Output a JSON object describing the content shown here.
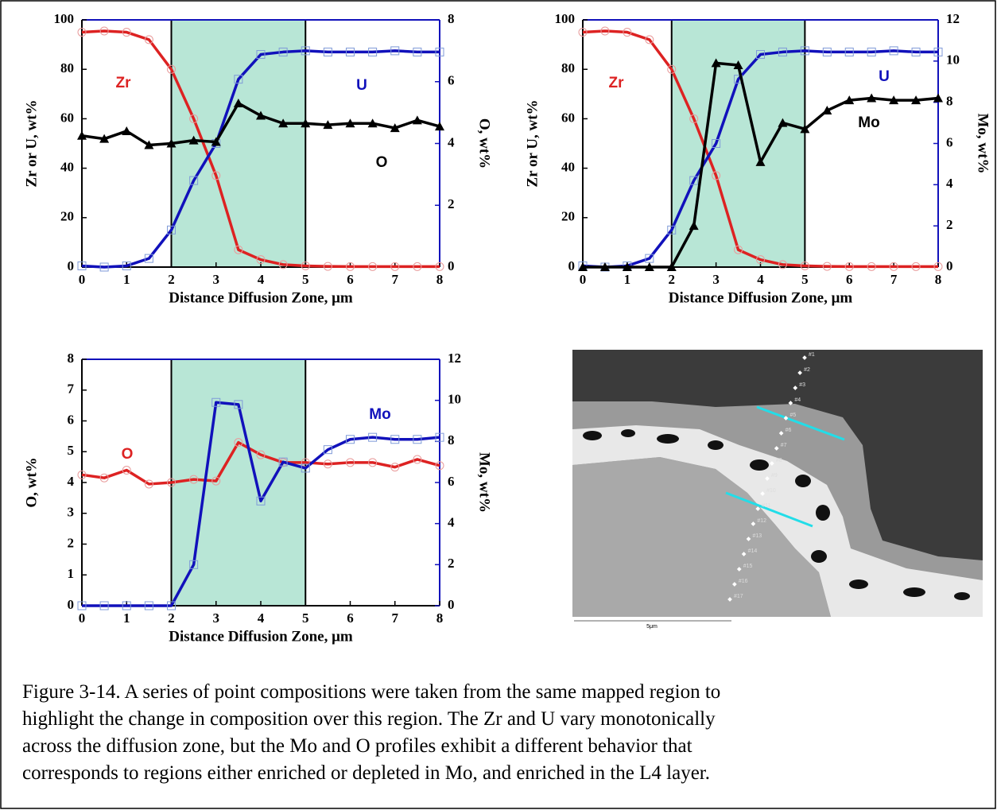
{
  "chart_data": [
    {
      "type": "line",
      "xlabel": "Distance Diffusion Zone, μm",
      "ylabel": "Zr or U, wt%",
      "y2label": "O, wt%",
      "x": [
        0,
        0.5,
        1,
        1.5,
        2,
        2.5,
        3,
        3.5,
        4,
        4.5,
        5,
        5.5,
        6,
        6.5,
        7,
        7.5,
        8
      ],
      "xlim": [
        0,
        8
      ],
      "xticks": [
        0,
        1,
        2,
        3,
        4,
        5,
        6,
        7,
        8
      ],
      "ylim": [
        0,
        100
      ],
      "yticks": [
        0,
        20,
        40,
        60,
        80,
        100
      ],
      "y2lim": [
        0,
        8
      ],
      "y2ticks": [
        0,
        2,
        4,
        6,
        8
      ],
      "shaded_region": [
        2,
        5
      ],
      "shade_color": "#b8e6d6",
      "series": [
        {
          "name": "Zr",
          "color": "#dd2222",
          "marker": "circle",
          "marker_color": "#e89a9a",
          "values": [
            95,
            95.5,
            95,
            92,
            80,
            60,
            37,
            7,
            3,
            1,
            0.5,
            0.3,
            0.2,
            0.2,
            0.2,
            0.2,
            0.2
          ]
        },
        {
          "name": "U",
          "color": "#1111bb",
          "marker": "square",
          "marker_color": "#7f9ad8",
          "values": [
            0.5,
            0,
            0.5,
            3.5,
            15,
            35,
            50,
            76,
            86,
            87,
            87.5,
            87,
            87,
            87,
            87.5,
            87,
            87
          ]
        },
        {
          "name": "O",
          "color": "#000000",
          "marker": "triangle",
          "marker_color": "#000000",
          "axis": "y2",
          "values": [
            4.25,
            4.15,
            4.4,
            3.95,
            4.0,
            4.1,
            4.05,
            5.3,
            4.9,
            4.65,
            4.65,
            4.6,
            4.65,
            4.65,
            4.5,
            4.75,
            4.55
          ]
        }
      ]
    },
    {
      "type": "line",
      "xlabel": "Distance Diffusion Zone, μm",
      "ylabel": "Zr or U, wt%",
      "y2label": "Mo, wt%",
      "x": [
        0,
        0.5,
        1,
        1.5,
        2,
        2.5,
        3,
        3.5,
        4,
        4.5,
        5,
        5.5,
        6,
        6.5,
        7,
        7.5,
        8
      ],
      "xlim": [
        0,
        8
      ],
      "xticks": [
        0,
        1,
        2,
        3,
        4,
        5,
        6,
        7,
        8
      ],
      "ylim": [
        0,
        100
      ],
      "yticks": [
        0,
        20,
        40,
        60,
        80,
        100
      ],
      "y2lim": [
        0,
        12
      ],
      "y2ticks": [
        0,
        2,
        4,
        6,
        8,
        10,
        12
      ],
      "shaded_region": [
        2,
        5
      ],
      "shade_color": "#b8e6d6",
      "series": [
        {
          "name": "Zr",
          "color": "#dd2222",
          "marker": "circle",
          "marker_color": "#e89a9a",
          "values": [
            95,
            95.5,
            95,
            92,
            80,
            60,
            37,
            7,
            3,
            1,
            0.5,
            0.3,
            0.2,
            0.2,
            0.2,
            0.2,
            0.2
          ]
        },
        {
          "name": "U",
          "color": "#1111bb",
          "marker": "square",
          "marker_color": "#7f9ad8",
          "values": [
            0.5,
            0,
            0.5,
            3.5,
            15,
            35,
            50,
            76,
            86,
            87,
            87.5,
            87,
            87,
            87,
            87.5,
            87,
            87
          ]
        },
        {
          "name": "Mo",
          "color": "#000000",
          "marker": "triangle",
          "marker_color": "#000000",
          "axis": "y2",
          "values": [
            0,
            0,
            0,
            0,
            0,
            2,
            9.9,
            9.8,
            5.1,
            7,
            6.7,
            7.6,
            8.1,
            8.2,
            8.1,
            8.1,
            8.2
          ]
        }
      ]
    },
    {
      "type": "line",
      "xlabel": "Distance Diffusion Zone, μm",
      "ylabel": "O, wt%",
      "y2label": "Mo, wt%",
      "x": [
        0,
        0.5,
        1,
        1.5,
        2,
        2.5,
        3,
        3.5,
        4,
        4.5,
        5,
        5.5,
        6,
        6.5,
        7,
        7.5,
        8
      ],
      "xlim": [
        0,
        8
      ],
      "xticks": [
        0,
        1,
        2,
        3,
        4,
        5,
        6,
        7,
        8
      ],
      "ylim": [
        0,
        8
      ],
      "yticks": [
        0,
        1,
        2,
        3,
        4,
        5,
        6,
        7,
        8
      ],
      "y2lim": [
        0,
        12
      ],
      "y2ticks": [
        0,
        2,
        4,
        6,
        8,
        10,
        12
      ],
      "shaded_region": [
        2,
        5
      ],
      "shade_color": "#b8e6d6",
      "series": [
        {
          "name": "O",
          "color": "#dd2222",
          "marker": "circle",
          "marker_color": "#e89a9a",
          "values": [
            4.25,
            4.15,
            4.4,
            3.95,
            4.0,
            4.1,
            4.05,
            5.3,
            4.9,
            4.65,
            4.65,
            4.6,
            4.65,
            4.65,
            4.5,
            4.75,
            4.55
          ]
        },
        {
          "name": "Mo",
          "color": "#1111bb",
          "marker": "square",
          "marker_color": "#7f9ad8",
          "axis": "y2",
          "values": [
            0,
            0,
            0,
            0,
            0,
            2,
            9.9,
            9.8,
            5.1,
            7,
            6.7,
            7.6,
            8.1,
            8.2,
            8.1,
            8.1,
            8.2
          ]
        }
      ]
    }
  ],
  "image": {
    "point_labels": [
      "#1",
      "#2",
      "#3",
      "#4",
      "#5",
      "#6",
      "#7",
      "#8",
      "#9",
      "#10",
      "#11",
      "#12",
      "#13",
      "#14",
      "#15",
      "#16",
      "#17"
    ],
    "scale_label": "5μm"
  },
  "caption_lines": [
    "Figure 3-14.    A series of point compositions were taken from the same mapped region to",
    "highlight the change in composition over this region.  The Zr and U vary monotonically",
    "across the diffusion zone, but the Mo and O profiles exhibit a different behavior that",
    "corresponds to regions either enriched or depleted in Mo, and enriched in the L4 layer."
  ]
}
